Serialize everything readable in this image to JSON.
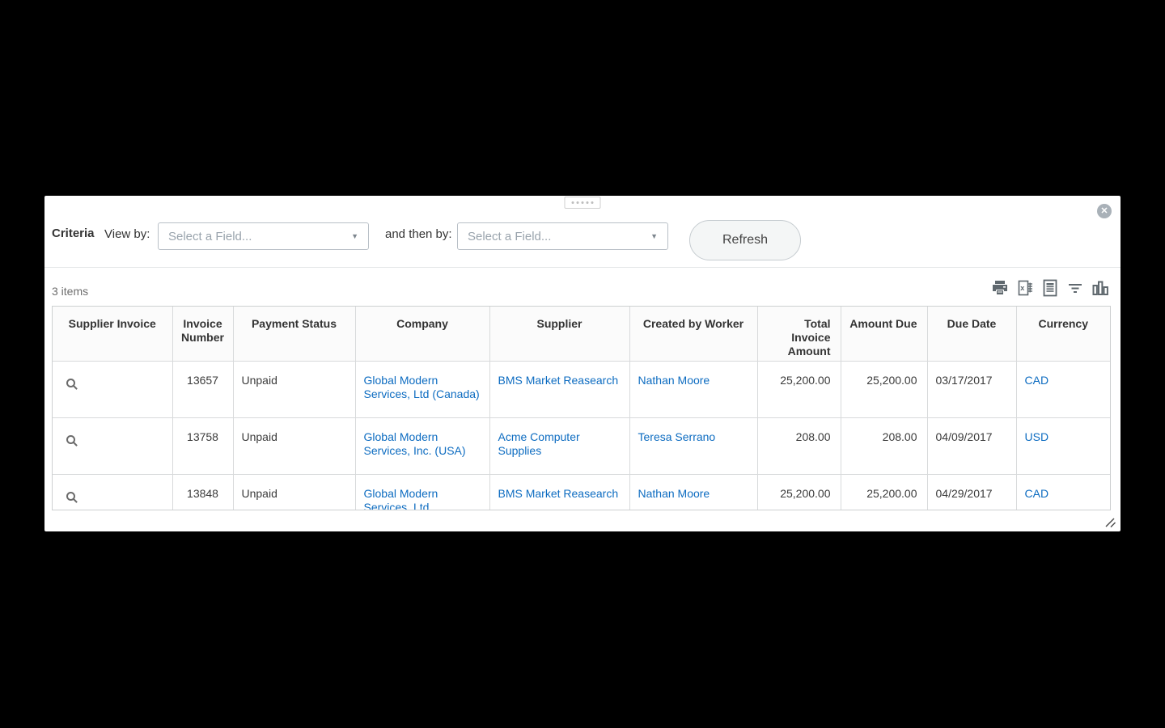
{
  "window": {
    "close_icon": "✕"
  },
  "criteria": {
    "label": "Criteria",
    "view_by_label": "View by:",
    "and_then_by_label": "and then by:",
    "view_by_placeholder": "Select a Field...",
    "then_by_placeholder": "Select a Field...",
    "refresh_label": "Refresh"
  },
  "toolbar": {
    "items_count": "3 items",
    "icons": [
      "printer-icon",
      "excel-export-icon",
      "export-document-icon",
      "filter-icon",
      "chart-icon"
    ]
  },
  "table": {
    "columns": [
      "Supplier Invoice",
      "Invoice Number",
      "Payment Status",
      "Company",
      "Supplier",
      "Created by Worker",
      "Total Invoice Amount",
      "Amount Due",
      "Due Date",
      "Currency"
    ],
    "rows": [
      {
        "invoice_number": "13657",
        "payment_status": "Unpaid",
        "company": "Global Modern Services, Ltd (Canada)",
        "supplier": "BMS Market Reasearch",
        "created_by": "Nathan Moore",
        "total_invoice_amount": "25,200.00",
        "amount_due": "25,200.00",
        "due_date": "03/17/2017",
        "currency": "CAD"
      },
      {
        "invoice_number": "13758",
        "payment_status": "Unpaid",
        "company": "Global Modern Services, Inc. (USA)",
        "supplier": "Acme Computer Supplies",
        "created_by": "Teresa Serrano",
        "total_invoice_amount": "208.00",
        "amount_due": "208.00",
        "due_date": "04/09/2017",
        "currency": "USD"
      },
      {
        "invoice_number": "13848",
        "payment_status": "Unpaid",
        "company": "Global Modern Services, Ltd",
        "supplier": "BMS Market Reasearch",
        "created_by": "Nathan Moore",
        "total_invoice_amount": "25,200.00",
        "amount_due": "25,200.00",
        "due_date": "04/29/2017",
        "currency": "CAD"
      }
    ]
  },
  "colors": {
    "link_blue": "#0d6cc1",
    "icon_gray": "#5f686e",
    "header_bg": "#fbfbfb"
  }
}
